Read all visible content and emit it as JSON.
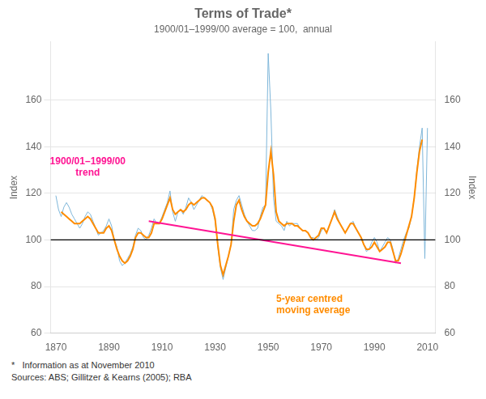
{
  "chart_data": {
    "type": "line",
    "title": "Terms of Trade*",
    "subtitle": "1900/01–1999/00 average = 100,  annual",
    "ylabel": "Index",
    "y2label": "Index",
    "xlim": [
      1868,
      2013
    ],
    "xticks": [
      1870,
      1890,
      1910,
      1930,
      1950,
      1970,
      1990,
      2010
    ],
    "ylim": [
      60,
      185
    ],
    "yticks": [
      60,
      80,
      100,
      120,
      140,
      160
    ],
    "y2lim": [
      60,
      185
    ],
    "y2ticks": [
      60,
      80,
      100,
      120,
      140,
      160
    ],
    "grid": "y",
    "series": [
      {
        "color": "#7EB6D9",
        "x": [
          1870,
          1871,
          1872,
          1873,
          1874,
          1875,
          1876,
          1877,
          1878,
          1879,
          1880,
          1881,
          1882,
          1883,
          1884,
          1885,
          1886,
          1887,
          1888,
          1889,
          1890,
          1891,
          1892,
          1893,
          1894,
          1895,
          1896,
          1897,
          1898,
          1899,
          1900,
          1901,
          1902,
          1903,
          1904,
          1905,
          1906,
          1907,
          1908,
          1909,
          1910,
          1911,
          1912,
          1913,
          1914,
          1915,
          1916,
          1917,
          1918,
          1919,
          1920,
          1921,
          1922,
          1923,
          1924,
          1925,
          1926,
          1927,
          1928,
          1929,
          1930,
          1931,
          1932,
          1933,
          1934,
          1935,
          1936,
          1937,
          1938,
          1939,
          1940,
          1941,
          1942,
          1943,
          1944,
          1945,
          1946,
          1947,
          1948,
          1949,
          1950,
          1951,
          1952,
          1953,
          1954,
          1955,
          1956,
          1957,
          1958,
          1959,
          1960,
          1961,
          1962,
          1963,
          1964,
          1965,
          1966,
          1967,
          1968,
          1969,
          1970,
          1971,
          1972,
          1973,
          1974,
          1975,
          1976,
          1977,
          1978,
          1979,
          1980,
          1981,
          1982,
          1983,
          1984,
          1985,
          1986,
          1987,
          1988,
          1989,
          1990,
          1991,
          1992,
          1993,
          1994,
          1995,
          1996,
          1997,
          1998,
          1999,
          2000,
          2001,
          2002,
          2003,
          2004,
          2005,
          2006,
          2007,
          2008,
          2009,
          2010
        ],
        "values": [
          119,
          113,
          110,
          114,
          116,
          114,
          111,
          109,
          107,
          105,
          107,
          110,
          112,
          111,
          108,
          105,
          102,
          103,
          104,
          106,
          109,
          106,
          100,
          97,
          91,
          89,
          90,
          92,
          94,
          97,
          102,
          105,
          104,
          101,
          100,
          102,
          105,
          109,
          107,
          107,
          110,
          113,
          116,
          121,
          112,
          108,
          112,
          113,
          111,
          114,
          118,
          116,
          113,
          115,
          117,
          119,
          118,
          117,
          116,
          113,
          108,
          97,
          88,
          83,
          88,
          93,
          98,
          113,
          117,
          119,
          115,
          111,
          108,
          106,
          104,
          104,
          105,
          110,
          114,
          115,
          180,
          155,
          118,
          108,
          107,
          106,
          104,
          108,
          106,
          107,
          107,
          107,
          105,
          104,
          104,
          103,
          101,
          101,
          100,
          101,
          104,
          105,
          103,
          106,
          109,
          113,
          110,
          107,
          105,
          103,
          105,
          107,
          108,
          105,
          103,
          101,
          98,
          95,
          96,
          99,
          101,
          99,
          95,
          97,
          99,
          101,
          100,
          96,
          90,
          92,
          96,
          100,
          103,
          105,
          110,
          118,
          130,
          140,
          148,
          92,
          148
        ]
      },
      {
        "color": "#FF8C00",
        "x": [
          1872,
          1873,
          1874,
          1875,
          1876,
          1877,
          1878,
          1879,
          1880,
          1881,
          1882,
          1883,
          1884,
          1885,
          1886,
          1887,
          1888,
          1889,
          1890,
          1891,
          1892,
          1893,
          1894,
          1895,
          1896,
          1897,
          1898,
          1899,
          1900,
          1901,
          1902,
          1903,
          1904,
          1905,
          1906,
          1907,
          1908,
          1909,
          1910,
          1911,
          1912,
          1913,
          1914,
          1915,
          1916,
          1917,
          1918,
          1919,
          1920,
          1921,
          1922,
          1923,
          1924,
          1925,
          1926,
          1927,
          1928,
          1929,
          1930,
          1931,
          1932,
          1933,
          1934,
          1935,
          1936,
          1937,
          1938,
          1939,
          1940,
          1941,
          1942,
          1943,
          1944,
          1945,
          1946,
          1947,
          1948,
          1949,
          1950,
          1951,
          1952,
          1953,
          1954,
          1955,
          1956,
          1957,
          1958,
          1959,
          1960,
          1961,
          1962,
          1963,
          1964,
          1965,
          1966,
          1967,
          1968,
          1969,
          1970,
          1971,
          1972,
          1973,
          1974,
          1975,
          1976,
          1977,
          1978,
          1979,
          1980,
          1981,
          1982,
          1983,
          1984,
          1985,
          1986,
          1987,
          1988,
          1989,
          1990,
          1991,
          1992,
          1993,
          1994,
          1995,
          1996,
          1997,
          1998,
          1999,
          2000,
          2001,
          2002,
          2003,
          2004,
          2005,
          2006,
          2007,
          2008
        ],
        "values": [
          112,
          111,
          110,
          109,
          108,
          107,
          107,
          107,
          108,
          109,
          110,
          109,
          107,
          105,
          103,
          103,
          103,
          105,
          106,
          104,
          100,
          96,
          93,
          91,
          90,
          91,
          93,
          96,
          101,
          103,
          103,
          102,
          101,
          101,
          103,
          107,
          107,
          107,
          109,
          112,
          115,
          118,
          113,
          111,
          112,
          113,
          112,
          113,
          115,
          116,
          115,
          116,
          117,
          118,
          118,
          117,
          116,
          114,
          109,
          98,
          89,
          85,
          89,
          93,
          98,
          108,
          115,
          117,
          113,
          110,
          108,
          107,
          106,
          106,
          107,
          109,
          112,
          115,
          129,
          138,
          128,
          112,
          108,
          107,
          106,
          107,
          107,
          107,
          106,
          106,
          105,
          104,
          104,
          103,
          101,
          100,
          101,
          102,
          105,
          105,
          103,
          106,
          109,
          112,
          109,
          107,
          105,
          103,
          105,
          107,
          107,
          105,
          103,
          101,
          98,
          96,
          96,
          97,
          99,
          97,
          95,
          96,
          97,
          99,
          99,
          95,
          91,
          91,
          94,
          98,
          102,
          106,
          110,
          118,
          129,
          138,
          143
        ]
      },
      {
        "color": "#FF1493",
        "x": [
          1905,
          2000
        ],
        "values": [
          108,
          90
        ]
      }
    ],
    "hlines": [
      {
        "value": 100,
        "color": "black"
      }
    ],
    "annotations": [
      {
        "text": "1900/01–1999/00\ntrend",
        "x": 1882,
        "y": 131,
        "color": "#FF1493"
      },
      {
        "text": "5-year centred\nmoving average",
        "x": 1953,
        "y": 72,
        "color": "#FF8C00"
      }
    ],
    "footnotes": [
      "*   Information as at November 2010",
      "Sources: ABS; Gillitzer & Kearns (2005); RBA"
    ]
  }
}
